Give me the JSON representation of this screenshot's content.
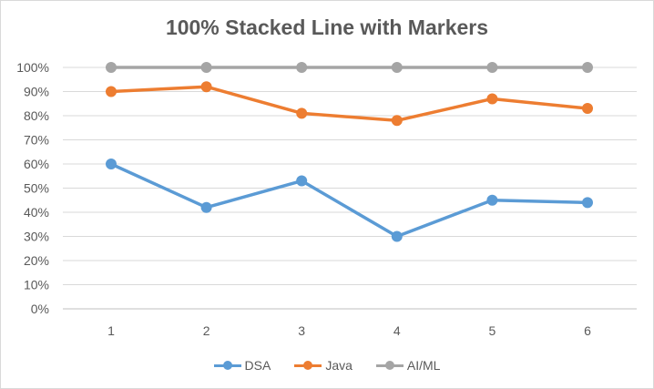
{
  "chart_data": {
    "type": "line",
    "title": "100% Stacked Line with Markers",
    "xlabel": "",
    "ylabel": "",
    "categories": [
      "1",
      "2",
      "3",
      "4",
      "5",
      "6"
    ],
    "y_ticks": [
      "0%",
      "10%",
      "20%",
      "30%",
      "40%",
      "50%",
      "60%",
      "70%",
      "80%",
      "90%",
      "100%"
    ],
    "ylim": [
      0,
      1
    ],
    "grid": true,
    "legend_position": "bottom",
    "series": [
      {
        "name": "DSA",
        "color": "#5b9bd5",
        "values": [
          0.6,
          0.42,
          0.53,
          0.3,
          0.45,
          0.44
        ]
      },
      {
        "name": "Java",
        "color": "#ed7d31",
        "values": [
          0.9,
          0.92,
          0.81,
          0.78,
          0.87,
          0.83
        ]
      },
      {
        "name": "AI/ML",
        "color": "#a5a5a5",
        "values": [
          1.0,
          1.0,
          1.0,
          1.0,
          1.0,
          1.0
        ]
      }
    ]
  }
}
